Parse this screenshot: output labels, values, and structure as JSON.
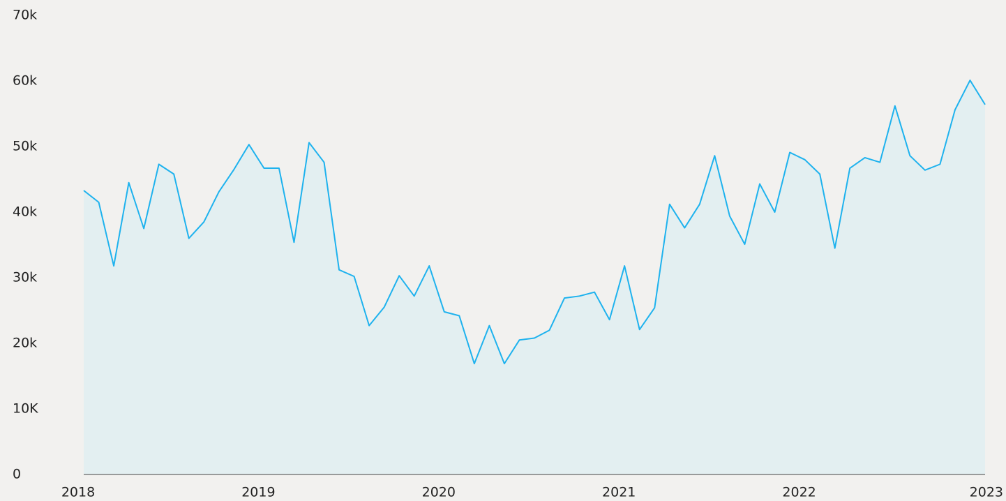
{
  "chart_data": {
    "type": "area",
    "x": [
      0,
      1,
      2,
      3,
      4,
      5,
      6,
      7,
      8,
      9,
      10,
      11,
      12,
      13,
      14,
      15,
      16,
      17,
      18,
      19,
      20,
      21,
      22,
      23,
      24,
      25,
      26,
      27,
      28,
      29,
      30,
      31,
      32,
      33,
      34,
      35,
      36,
      37,
      38,
      39,
      40,
      41,
      42,
      43,
      44,
      45,
      46,
      47,
      48,
      49,
      50,
      51,
      52,
      53,
      54,
      55,
      56,
      57,
      58,
      59,
      60
    ],
    "series": [
      {
        "color": "#1eb2ee",
        "values": [
          43300,
          41500,
          31800,
          44500,
          37500,
          47300,
          45800,
          36000,
          38500,
          43100,
          46500,
          50300,
          46700,
          46700,
          35400,
          50600,
          47600,
          31200,
          30200,
          22700,
          25500,
          30300,
          27200,
          31800,
          24800,
          24200,
          16900,
          22700,
          16900,
          20500,
          20800,
          22000,
          26900,
          27200,
          27800,
          23600,
          31800,
          22100,
          25400,
          41200,
          37600,
          41200,
          48600,
          39400,
          35100,
          44300,
          40000,
          49100,
          48000,
          45800,
          34500,
          46700,
          48300,
          47600,
          56200,
          48600,
          46400,
          47300,
          55600,
          60100,
          56400
        ]
      }
    ],
    "fill": "#e3eff1",
    "xlim": [
      0,
      60
    ],
    "xticks": [
      {
        "value": 0,
        "label": "2018"
      },
      {
        "value": 12,
        "label": "2019"
      },
      {
        "value": 24,
        "label": "2020"
      },
      {
        "value": 36,
        "label": "2021"
      },
      {
        "value": 48,
        "label": "2022"
      },
      {
        "value": 60,
        "label": "2023"
      }
    ],
    "ylim": [
      0,
      70000
    ],
    "yticks": [
      0,
      {
        "value": 10000,
        "label": "10K"
      },
      {
        "value": 20000,
        "label": "20k"
      },
      {
        "value": 30000,
        "label": "30k"
      },
      {
        "value": 40000,
        "label": "40k"
      },
      {
        "value": 50000,
        "label": "50k"
      },
      {
        "value": 60000,
        "label": "60k"
      },
      {
        "value": 70000,
        "label": "70k"
      }
    ],
    "grid": false
  }
}
